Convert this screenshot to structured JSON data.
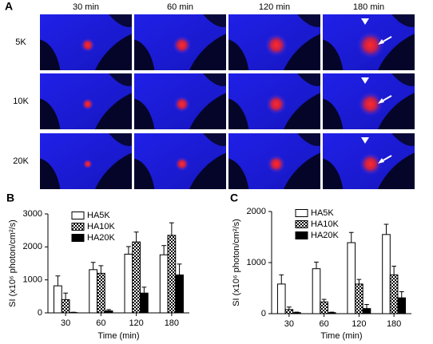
{
  "panel_a": {
    "label": "A",
    "columns": [
      "30 min",
      "60 min",
      "120 min",
      "180 min"
    ],
    "rows": [
      "5K",
      "10K",
      "20K"
    ]
  },
  "chart_data": [
    {
      "type": "bar",
      "label": "B",
      "ylabel": "SI (x10⁶ photon/cm²/s)",
      "xlabel": "Time (min)",
      "categories": [
        "30",
        "60",
        "120",
        "180"
      ],
      "ylim": [
        0,
        3000
      ],
      "yticks": [
        0,
        1000,
        2000,
        3000
      ],
      "legend": "upper left",
      "series": [
        {
          "name": "HA5K",
          "color": "#ffffff",
          "values": [
            820,
            1310,
            1780,
            1760
          ],
          "errors": [
            300,
            220,
            230,
            280
          ]
        },
        {
          "name": "HA10K",
          "color": "#ffffff",
          "pattern": "checker",
          "values": [
            400,
            1200,
            2150,
            2350
          ],
          "errors": [
            200,
            230,
            300,
            380
          ]
        },
        {
          "name": "HA20K",
          "color": "#000000",
          "values": [
            10,
            60,
            600,
            1150
          ],
          "errors": [
            10,
            40,
            180,
            330
          ]
        }
      ]
    },
    {
      "type": "bar",
      "label": "C",
      "ylabel": "SI (x10⁶ photon/cm²/s)",
      "xlabel": "Time (min)",
      "categories": [
        "30",
        "60",
        "120",
        "180"
      ],
      "ylim": [
        0,
        2000
      ],
      "yticks": [
        0,
        1000,
        2000
      ],
      "legend": "upper left",
      "series": [
        {
          "name": "HA5K",
          "color": "#ffffff",
          "values": [
            580,
            880,
            1390,
            1550
          ],
          "errors": [
            180,
            130,
            200,
            200
          ]
        },
        {
          "name": "HA10K",
          "color": "#ffffff",
          "pattern": "checker",
          "values": [
            80,
            230,
            580,
            760
          ],
          "errors": [
            50,
            50,
            90,
            170
          ]
        },
        {
          "name": "HA20K",
          "color": "#000000",
          "values": [
            20,
            20,
            100,
            310
          ],
          "errors": [
            10,
            10,
            80,
            120
          ]
        }
      ]
    }
  ]
}
